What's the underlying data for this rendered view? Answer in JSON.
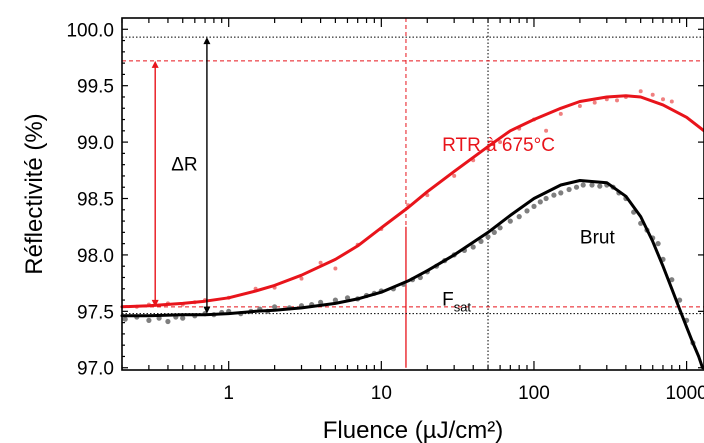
{
  "chart_data": {
    "type": "scatter",
    "xlabel": "Fluence (µJ/cm²)",
    "ylabel": "Réflectivité (%)",
    "xscale": "log",
    "xlim": [
      0.2,
      1300
    ],
    "ylim": [
      96.98,
      100.1
    ],
    "x_tick_labels": [
      {
        "value": 1,
        "label": "1"
      },
      {
        "value": 10,
        "label": "10"
      },
      {
        "value": 100,
        "label": "100"
      },
      {
        "value": 1000,
        "label": "1000"
      }
    ],
    "y_ticks": [
      97.0,
      97.5,
      98.0,
      98.5,
      99.0,
      99.5,
      100.0
    ],
    "y_tick_labels": [
      "97.0",
      "97.5",
      "98.0",
      "98.5",
      "99.0",
      "99.5",
      "100.0"
    ],
    "colors": {
      "rtr": "#e8141b",
      "brut": "#000000",
      "brut_points": "#7f7f7f",
      "rtr_points": "#f08080"
    },
    "series": [
      {
        "name": "RTR à 675°C",
        "kind": "fit",
        "x": [
          0.2,
          0.3,
          0.5,
          0.7,
          1,
          1.5,
          2,
          3,
          5,
          7,
          10,
          15,
          20,
          30,
          50,
          70,
          100,
          150,
          200,
          300,
          400,
          500,
          700,
          1000,
          1300
        ],
        "y": [
          97.54,
          97.55,
          97.57,
          97.59,
          97.62,
          97.68,
          97.73,
          97.82,
          97.96,
          98.08,
          98.24,
          98.42,
          98.56,
          98.74,
          98.96,
          99.1,
          99.2,
          99.3,
          99.36,
          99.4,
          99.41,
          99.4,
          99.33,
          99.22,
          99.1
        ]
      },
      {
        "name": "RTR à 675°C",
        "kind": "points",
        "x": [
          0.25,
          0.3,
          0.4,
          0.5,
          0.6,
          0.7,
          1,
          1.5,
          2,
          3,
          4,
          5,
          7,
          10,
          15,
          20,
          30,
          40,
          50,
          60,
          80,
          100,
          120,
          150,
          200,
          250,
          300,
          350,
          400,
          500,
          600,
          700,
          800
        ],
        "y": [
          97.54,
          97.56,
          97.57,
          97.56,
          97.58,
          97.6,
          97.62,
          97.7,
          97.71,
          97.79,
          97.93,
          97.88,
          98.09,
          98.23,
          98.44,
          98.53,
          98.7,
          98.84,
          98.94,
          99.0,
          99.12,
          99.2,
          99.1,
          99.25,
          99.32,
          99.35,
          99.38,
          99.37,
          99.4,
          99.45,
          99.42,
          99.38,
          99.36
        ]
      },
      {
        "name": "Brut",
        "kind": "fit",
        "x": [
          0.2,
          0.3,
          0.5,
          0.7,
          1,
          1.5,
          2,
          3,
          5,
          7,
          10,
          15,
          20,
          30,
          50,
          70,
          100,
          150,
          200,
          300,
          400,
          500,
          600,
          700,
          800,
          900,
          1000,
          1100,
          1200,
          1270
        ],
        "y": [
          97.46,
          97.46,
          97.47,
          97.47,
          97.48,
          97.5,
          97.51,
          97.53,
          97.57,
          97.61,
          97.67,
          97.77,
          97.86,
          98.0,
          98.2,
          98.35,
          98.5,
          98.62,
          98.66,
          98.64,
          98.52,
          98.34,
          98.12,
          97.9,
          97.7,
          97.52,
          97.36,
          97.22,
          97.1,
          97.0
        ]
      },
      {
        "name": "Brut",
        "kind": "points",
        "x": [
          0.21,
          0.25,
          0.3,
          0.35,
          0.4,
          0.45,
          0.5,
          0.6,
          0.7,
          0.8,
          0.9,
          1.0,
          1.2,
          1.4,
          1.6,
          1.8,
          2.0,
          2.5,
          3.0,
          3.5,
          4.0,
          5.0,
          6.0,
          7.0,
          8.0,
          9.0,
          10,
          12,
          14,
          16,
          18,
          20,
          23,
          26,
          30,
          35,
          40,
          45,
          50,
          55,
          60,
          70,
          80,
          90,
          100,
          110,
          120,
          135,
          150,
          170,
          190,
          210,
          240,
          270,
          300,
          330,
          360,
          400,
          450,
          500,
          550,
          600,
          650,
          700,
          800,
          900,
          1000,
          1100
        ],
        "y": [
          97.43,
          97.45,
          97.42,
          97.44,
          97.41,
          97.45,
          97.44,
          97.46,
          97.48,
          97.47,
          97.49,
          97.5,
          97.48,
          97.5,
          97.52,
          97.5,
          97.54,
          97.53,
          97.55,
          97.56,
          97.58,
          97.6,
          97.62,
          97.61,
          97.64,
          97.66,
          97.68,
          97.7,
          97.74,
          97.78,
          97.8,
          97.85,
          97.9,
          97.95,
          98.0,
          98.04,
          98.07,
          98.12,
          98.16,
          98.2,
          98.24,
          98.3,
          98.34,
          98.39,
          98.43,
          98.47,
          98.5,
          98.53,
          98.55,
          98.58,
          98.6,
          98.62,
          98.62,
          98.61,
          98.62,
          98.6,
          98.55,
          98.5,
          98.38,
          98.28,
          98.22,
          98.15,
          98.1,
          97.96,
          97.78,
          97.6,
          97.42,
          97.22
        ]
      }
    ],
    "reference_lines": [
      {
        "axis": "x",
        "value": 14.5,
        "color": "#e8141b",
        "style": "solid",
        "from": 97.0,
        "to": 98.25
      },
      {
        "axis": "x",
        "value": 14.5,
        "color": "#e8141b",
        "style": "dashed",
        "from": 98.25,
        "to": 100.1
      },
      {
        "axis": "x",
        "value": 50,
        "color": "#000000",
        "style": "dotted"
      },
      {
        "axis": "y",
        "value": 99.93,
        "color": "#000000",
        "style": "dotted"
      },
      {
        "axis": "y",
        "value": 99.72,
        "color": "#e8141b",
        "style": "dashed"
      },
      {
        "axis": "y",
        "value": 97.48,
        "color": "#000000",
        "style": "dotted"
      },
      {
        "axis": "y",
        "value": 97.54,
        "color": "#e8141b",
        "style": "dashed"
      }
    ],
    "arrows": [
      {
        "x": 0.33,
        "from": 97.54,
        "to": 99.72,
        "color": "#e8141b"
      },
      {
        "x": 0.72,
        "from": 97.48,
        "to": 99.93,
        "color": "#000000"
      }
    ],
    "annotations": {
      "delta_r": {
        "text": "ΔR",
        "x": 0.42,
        "y": 98.75,
        "color": "#000000"
      },
      "rtr_label": {
        "text": "RTR à 675°C",
        "x": 25,
        "y": 98.92,
        "color": "#e8141b"
      },
      "brut_label": {
        "text": "Brut",
        "x": 200,
        "y": 98.1,
        "color": "#000000"
      },
      "fsat_label": {
        "text": "F",
        "subscript": "sat",
        "x": 25,
        "y": 97.55,
        "color": "#000000"
      }
    }
  }
}
